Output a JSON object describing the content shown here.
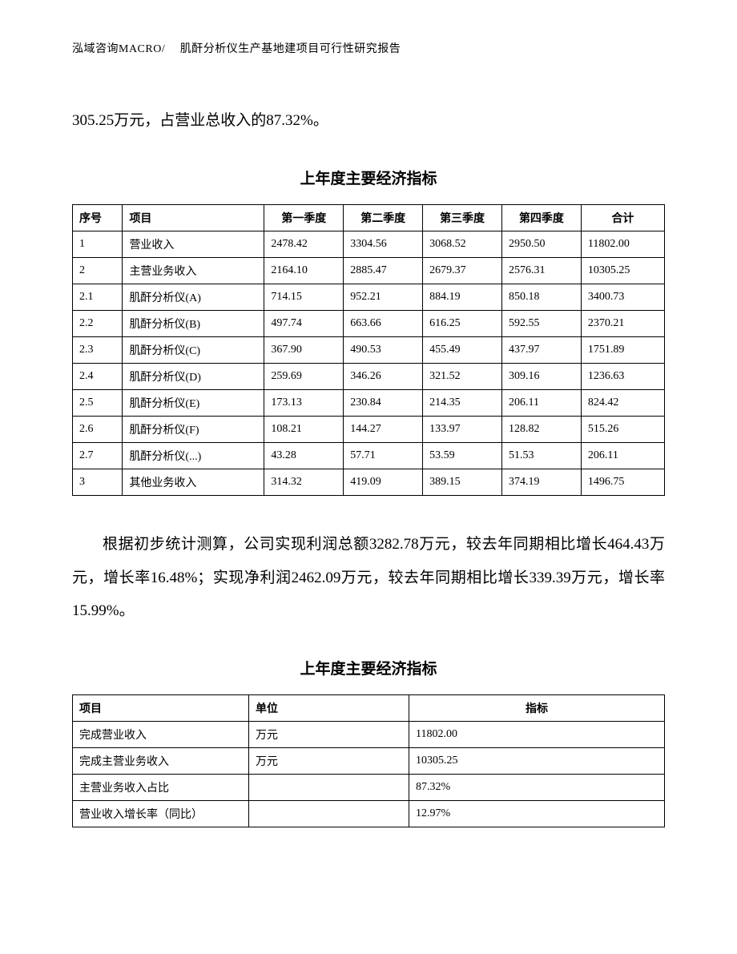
{
  "header": "泓域咨询MACRO/　 肌酐分析仪生产基地建项目可行性研究报告",
  "para1": "305.25万元，占营业总收入的87.32%。",
  "table1": {
    "title": "上年度主要经济指标",
    "headers": [
      "序号",
      "项目",
      "第一季度",
      "第二季度",
      "第三季度",
      "第四季度",
      "合计"
    ],
    "rows": [
      [
        "1",
        "营业收入",
        "2478.42",
        "3304.56",
        "3068.52",
        "2950.50",
        "11802.00"
      ],
      [
        "2",
        "主营业务收入",
        "2164.10",
        "2885.47",
        "2679.37",
        "2576.31",
        "10305.25"
      ],
      [
        "2.1",
        "肌酐分析仪(A)",
        "714.15",
        "952.21",
        "884.19",
        "850.18",
        "3400.73"
      ],
      [
        "2.2",
        "肌酐分析仪(B)",
        "497.74",
        "663.66",
        "616.25",
        "592.55",
        "2370.21"
      ],
      [
        "2.3",
        "肌酐分析仪(C)",
        "367.90",
        "490.53",
        "455.49",
        "437.97",
        "1751.89"
      ],
      [
        "2.4",
        "肌酐分析仪(D)",
        "259.69",
        "346.26",
        "321.52",
        "309.16",
        "1236.63"
      ],
      [
        "2.5",
        "肌酐分析仪(E)",
        "173.13",
        "230.84",
        "214.35",
        "206.11",
        "824.42"
      ],
      [
        "2.6",
        "肌酐分析仪(F)",
        "108.21",
        "144.27",
        "133.97",
        "128.82",
        "515.26"
      ],
      [
        "2.7",
        "肌酐分析仪(...)",
        "43.28",
        "57.71",
        "53.59",
        "51.53",
        "206.11"
      ],
      [
        "3",
        "其他业务收入",
        "314.32",
        "419.09",
        "389.15",
        "374.19",
        "1496.75"
      ]
    ]
  },
  "para2": "根据初步统计测算，公司实现利润总额3282.78万元，较去年同期相比增长464.43万元，增长率16.48%；实现净利润2462.09万元，较去年同期相比增长339.39万元，增长率15.99%。",
  "table2": {
    "title": "上年度主要经济指标",
    "headers": [
      "项目",
      "单位",
      "指标"
    ],
    "rows": [
      [
        "完成营业收入",
        "万元",
        "11802.00"
      ],
      [
        "完成主营业务收入",
        "万元",
        "10305.25"
      ],
      [
        "主营业务收入占比",
        "",
        "87.32%"
      ],
      [
        "营业收入增长率（同比）",
        "",
        "12.97%"
      ]
    ]
  }
}
